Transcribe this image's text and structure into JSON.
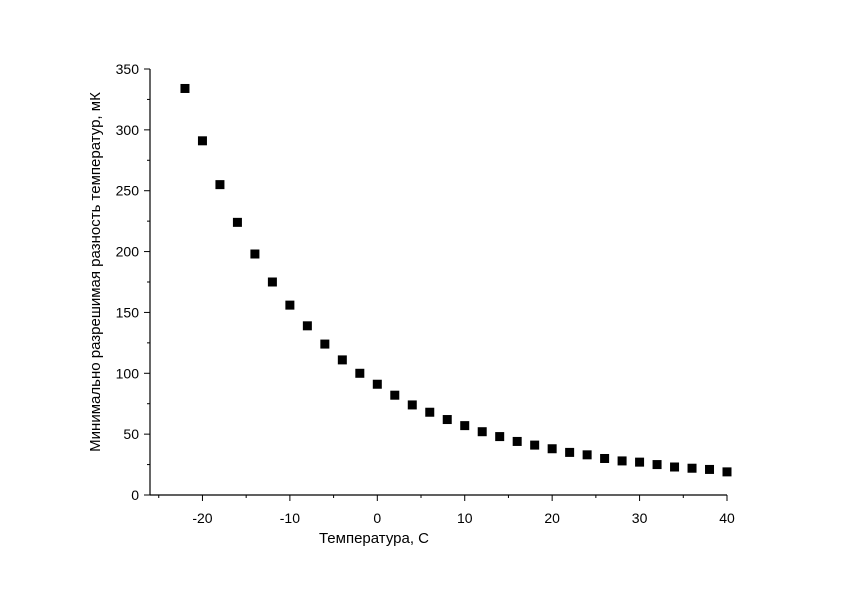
{
  "chart_data": {
    "type": "scatter",
    "title": "",
    "xlabel": "Температура, С",
    "ylabel": "Минимально разрешимая разность температур, мК",
    "xlim": [
      -26,
      40
    ],
    "ylim": [
      0,
      350
    ],
    "xticks": [
      -20,
      -10,
      0,
      10,
      20,
      30,
      40
    ],
    "xtick_labels": [
      "-20",
      "-10",
      "0",
      "10",
      "20",
      "30",
      "40"
    ],
    "yticks": [
      0,
      50,
      100,
      150,
      200,
      250,
      300,
      350
    ],
    "ytick_labels": [
      "0",
      "50",
      "100",
      "150",
      "200",
      "250",
      "300",
      "350"
    ],
    "grid": false,
    "legend": false,
    "marker": "square",
    "color": "#000000",
    "series": [
      {
        "x": [
          -22,
          -20,
          -18,
          -16,
          -14,
          -12,
          -10,
          -8,
          -6,
          -4,
          -2,
          0,
          2,
          4,
          6,
          8,
          10,
          12,
          14,
          16,
          18,
          20,
          22,
          24,
          26,
          28,
          30,
          32,
          34,
          36,
          38,
          40
        ],
        "y": [
          334,
          291,
          255,
          224,
          198,
          175,
          156,
          139,
          124,
          111,
          100,
          91,
          82,
          74,
          68,
          62,
          57,
          52,
          48,
          44,
          41,
          38,
          35,
          33,
          30,
          28,
          27,
          25,
          23,
          22,
          21,
          19
        ]
      }
    ]
  }
}
